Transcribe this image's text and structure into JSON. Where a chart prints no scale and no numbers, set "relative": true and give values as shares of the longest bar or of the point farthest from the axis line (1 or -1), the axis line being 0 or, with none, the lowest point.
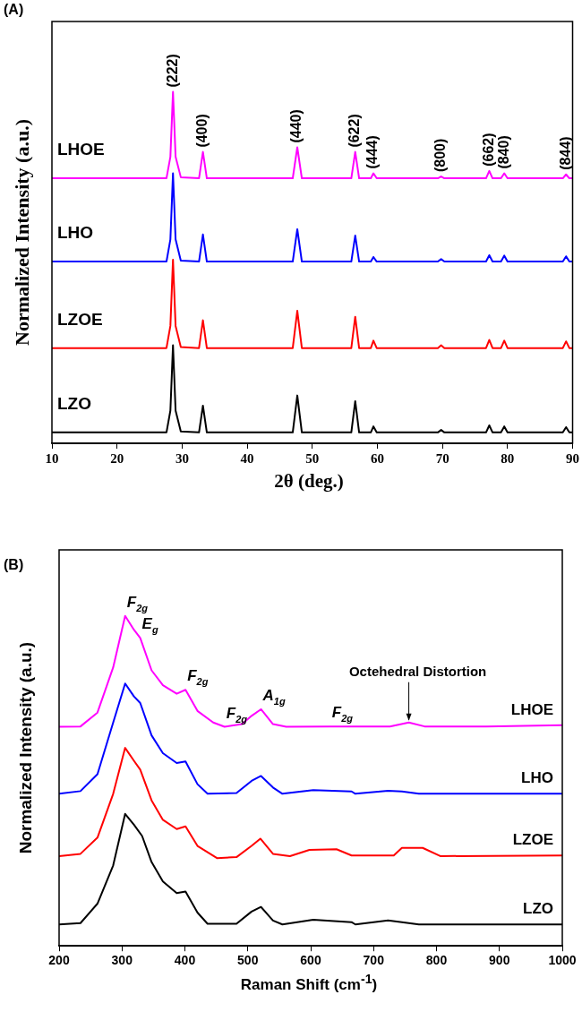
{
  "chart_data": [
    {
      "type": "line",
      "title": "(A)",
      "xlabel": "2θ (deg.)",
      "ylabel": "Normalized Intensity (a.u.)",
      "relative": true,
      "xlim": [
        10,
        90
      ],
      "xticks": [
        10,
        20,
        30,
        40,
        50,
        60,
        70,
        80,
        90
      ],
      "grid": false,
      "legend": false,
      "marker": "none",
      "line_style": "solid",
      "x": [
        10,
        27.6,
        28.2,
        28.6,
        29.0,
        29.8,
        32.6,
        33.2,
        33.8,
        47.0,
        47.7,
        48.4,
        56.0,
        56.6,
        57.2,
        59.0,
        59.4,
        59.9,
        69.3,
        69.8,
        70.3,
        76.7,
        77.2,
        77.7,
        79.0,
        79.5,
        80.0,
        88.5,
        89.0,
        89.5,
        90
      ],
      "series": [
        {
          "name": "LHOE",
          "color": "#ff00ff",
          "values": [
            0.754,
            0.754,
            0.815,
            1.0,
            0.815,
            0.757,
            0.754,
            0.829,
            0.754,
            0.754,
            0.842,
            0.754,
            0.754,
            0.829,
            0.754,
            0.754,
            0.768,
            0.754,
            0.754,
            0.759,
            0.754,
            0.754,
            0.775,
            0.754,
            0.754,
            0.768,
            0.754,
            0.754,
            0.765,
            0.754,
            0.754
          ]
        },
        {
          "name": "LHO",
          "color": "#0000ff",
          "values": [
            0.517,
            0.517,
            0.58,
            0.768,
            0.58,
            0.52,
            0.517,
            0.594,
            0.517,
            0.517,
            0.609,
            0.517,
            0.517,
            0.591,
            0.517,
            0.517,
            0.53,
            0.517,
            0.517,
            0.524,
            0.517,
            0.517,
            0.535,
            0.517,
            0.517,
            0.534,
            0.517,
            0.517,
            0.532,
            0.517,
            0.517
          ]
        },
        {
          "name": "LZOE",
          "color": "#ff0000",
          "values": [
            0.271,
            0.271,
            0.334,
            0.522,
            0.334,
            0.274,
            0.271,
            0.35,
            0.271,
            0.271,
            0.377,
            0.271,
            0.271,
            0.36,
            0.271,
            0.271,
            0.292,
            0.271,
            0.271,
            0.279,
            0.271,
            0.271,
            0.294,
            0.271,
            0.271,
            0.292,
            0.271,
            0.271,
            0.29,
            0.271,
            0.271
          ]
        },
        {
          "name": "LZO",
          "color": "#000000",
          "values": [
            0.031,
            0.031,
            0.093,
            0.279,
            0.093,
            0.034,
            0.031,
            0.107,
            0.031,
            0.031,
            0.136,
            0.031,
            0.031,
            0.12,
            0.031,
            0.031,
            0.048,
            0.031,
            0.031,
            0.038,
            0.031,
            0.031,
            0.051,
            0.031,
            0.031,
            0.048,
            0.031,
            0.031,
            0.046,
            0.031,
            0.031
          ]
        }
      ],
      "annotations": [
        {
          "text": "(222)",
          "x": 28.6,
          "y": 1.0
        },
        {
          "text": "(400)",
          "x": 33.2,
          "y": 0.829
        },
        {
          "text": "(440)",
          "x": 47.7,
          "y": 0.842
        },
        {
          "text": "(622)",
          "x": 56.6,
          "y": 0.829
        },
        {
          "text": "(444)",
          "x": 59.4,
          "y": 0.768
        },
        {
          "text": "(800)",
          "x": 69.8,
          "y": 0.759
        },
        {
          "text": "(662)",
          "x": 77.2,
          "y": 0.775
        },
        {
          "text": "(840)",
          "x": 79.5,
          "y": 0.768
        },
        {
          "text": "(844)",
          "x": 89.0,
          "y": 0.765
        }
      ]
    },
    {
      "type": "line",
      "title": "(B)",
      "xlabel": "Raman Shift (cm$^{-1}$)",
      "ylabel": "Normalized Intensity (a.u.)",
      "relative": true,
      "xlim": [
        200,
        1000
      ],
      "xticks": [
        200,
        300,
        400,
        500,
        600,
        700,
        800,
        900,
        1000
      ],
      "grid": false,
      "legend": false,
      "marker": "none",
      "line_style": "solid",
      "series": [
        {
          "name": "LHOE",
          "color": "#ff00ff",
          "x": [
            200,
            234,
            261,
            286,
            305,
            319,
            329,
            347,
            365,
            387,
            401,
            420,
            445,
            463,
            491,
            506,
            521,
            540,
            561,
            631,
            726,
            756,
            781,
            879,
            1000
          ],
          "values": [
            0.664,
            0.665,
            0.707,
            0.844,
            1.0,
            0.958,
            0.933,
            0.835,
            0.79,
            0.764,
            0.776,
            0.712,
            0.677,
            0.664,
            0.672,
            0.697,
            0.717,
            0.672,
            0.664,
            0.665,
            0.665,
            0.677,
            0.665,
            0.665,
            0.669
          ]
        },
        {
          "name": "LHO",
          "color": "#0000ff",
          "x": [
            200,
            234,
            261,
            286,
            305,
            319,
            329,
            347,
            365,
            387,
            401,
            420,
            436,
            482,
            506,
            521,
            540,
            555,
            604,
            665,
            671,
            723,
            745,
            772,
            1000
          ],
          "values": [
            0.461,
            0.469,
            0.52,
            0.677,
            0.795,
            0.756,
            0.736,
            0.638,
            0.584,
            0.554,
            0.559,
            0.49,
            0.461,
            0.463,
            0.5,
            0.515,
            0.48,
            0.461,
            0.472,
            0.468,
            0.461,
            0.47,
            0.468,
            0.461,
            0.461
          ]
        },
        {
          "name": "LZOE",
          "color": "#ff0000",
          "x": [
            200,
            234,
            261,
            286,
            305,
            319,
            329,
            347,
            365,
            387,
            401,
            420,
            451,
            482,
            506,
            520,
            540,
            567,
            598,
            641,
            665,
            732,
            745,
            778,
            806,
            1000
          ],
          "values": [
            0.272,
            0.279,
            0.328,
            0.461,
            0.6,
            0.561,
            0.534,
            0.441,
            0.382,
            0.354,
            0.362,
            0.303,
            0.266,
            0.269,
            0.303,
            0.325,
            0.279,
            0.272,
            0.291,
            0.293,
            0.274,
            0.274,
            0.297,
            0.297,
            0.272,
            0.274
          ]
        },
        {
          "name": "LZO",
          "color": "#000000",
          "x": [
            200,
            234,
            261,
            286,
            305,
            319,
            332,
            347,
            365,
            387,
            401,
            420,
            436,
            482,
            506,
            521,
            540,
            555,
            604,
            665,
            671,
            723,
            745,
            772,
            1000
          ],
          "values": [
            0.065,
            0.069,
            0.128,
            0.244,
            0.4,
            0.367,
            0.333,
            0.254,
            0.195,
            0.16,
            0.165,
            0.101,
            0.067,
            0.067,
            0.104,
            0.118,
            0.077,
            0.065,
            0.079,
            0.072,
            0.065,
            0.077,
            0.072,
            0.065,
            0.065
          ]
        }
      ],
      "annotations": [
        {
          "text": "F$_{2g}$",
          "x": 305,
          "y": 1.0
        },
        {
          "text": "E$_{g}$",
          "x": 329,
          "y": 0.933
        },
        {
          "text": "F$_{2g}$",
          "x": 401,
          "y": 0.776
        },
        {
          "text": "F$_{2g}$",
          "x": 463,
          "y": 0.664
        },
        {
          "text": "A$_{1g}$",
          "x": 521,
          "y": 0.717
        },
        {
          "text": "F$_{2g}$",
          "x": 631,
          "y": 0.665
        },
        {
          "text": "Octehedral Distortion",
          "x": 756,
          "y": 0.677
        }
      ]
    }
  ]
}
